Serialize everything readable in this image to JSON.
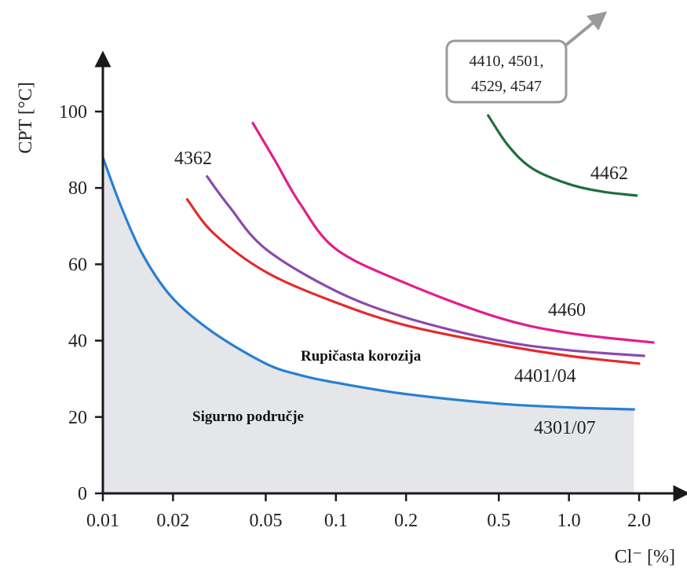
{
  "chart_data": {
    "type": "line",
    "ylabel": "CPT [°C]",
    "xlabel": "Cl⁻ [%]",
    "x_scale": "log",
    "x_ticks": [
      0.01,
      0.02,
      0.05,
      0.1,
      0.2,
      0.5,
      1.0,
      2.0
    ],
    "x_tick_labels": [
      "0.01",
      "0.02",
      "0.05",
      "0.1",
      "0.2",
      "0.5",
      "1.0",
      "2.0"
    ],
    "y_ticks": [
      0,
      20,
      40,
      60,
      80,
      100
    ],
    "y_tick_labels": [
      "0",
      "20",
      "40",
      "60",
      "80",
      "100"
    ],
    "xlim": [
      0.01,
      2.4
    ],
    "ylim": [
      0,
      110
    ],
    "grid": false,
    "series": [
      {
        "name": "4301/07",
        "color": "#2a7fd0",
        "filled": true,
        "x": [
          0.01,
          0.012,
          0.015,
          0.02,
          0.03,
          0.05,
          0.07,
          0.1,
          0.2,
          0.5,
          1.0,
          1.9
        ],
        "y": [
          88,
          75,
          62,
          51,
          42,
          34,
          31,
          29,
          26,
          23.5,
          22.5,
          22
        ]
      },
      {
        "name": "4401/04",
        "color": "#e32b2b",
        "x": [
          0.023,
          0.03,
          0.05,
          0.1,
          0.2,
          0.5,
          1.0,
          2.0
        ],
        "y": [
          77,
          68,
          58,
          50,
          44,
          39,
          36,
          34
        ]
      },
      {
        "name": "4362",
        "color": "#8a4aad",
        "x": [
          0.028,
          0.035,
          0.05,
          0.1,
          0.2,
          0.5,
          1.0,
          2.1
        ],
        "y": [
          83,
          75,
          64,
          53,
          46,
          40,
          37.5,
          36
        ]
      },
      {
        "name": "4460",
        "color": "#e31c8c",
        "x": [
          0.044,
          0.055,
          0.07,
          0.1,
          0.2,
          0.5,
          1.0,
          2.3
        ],
        "y": [
          97,
          87,
          76,
          64,
          55,
          46,
          42,
          39.5
        ]
      },
      {
        "name": "4462",
        "color": "#1f6e3e",
        "x": [
          0.45,
          0.55,
          0.7,
          1.0,
          1.4,
          1.95
        ],
        "y": [
          99,
          91,
          85,
          81,
          79,
          78
        ]
      }
    ],
    "labels": {
      "4362": "4362",
      "4462": "4462",
      "4460": "4460",
      "4401_04": "4401/04",
      "4301_07": "4301/07"
    },
    "callout": [
      "4410, 4501,",
      "4529, 4547"
    ],
    "regions": {
      "corrosion": "Rupičasta korozija",
      "safe": "Sigurno područje"
    },
    "safe_area_color": "#e4e6ea",
    "axis_color": "#1a1a1a",
    "callout_arrow_color": "#9a9a9a"
  }
}
